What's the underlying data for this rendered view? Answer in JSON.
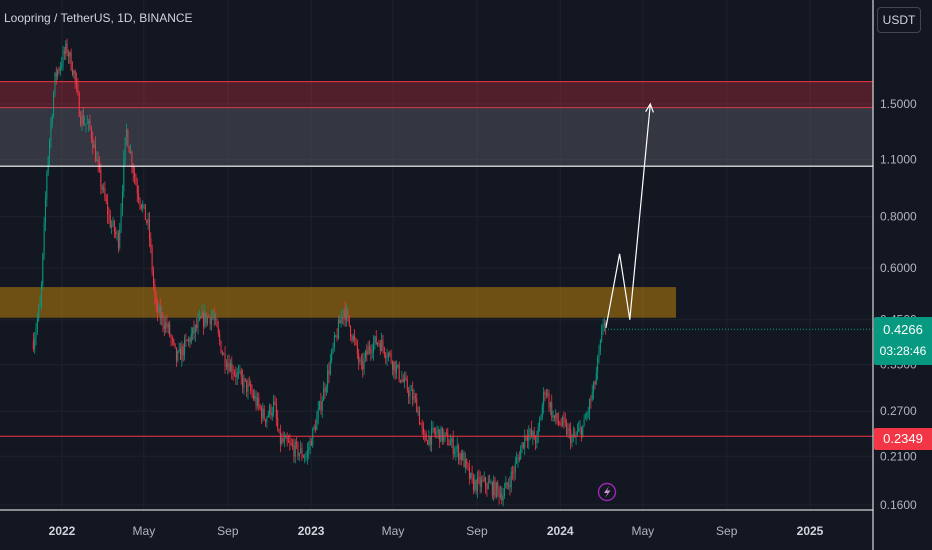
{
  "header": {
    "symbol": "Loopring / TetherUS",
    "interval": "1D",
    "exchange": "BINANCE"
  },
  "currency_button": "USDT",
  "current_price": {
    "value": "0.4266",
    "countdown": "03:28:46",
    "color": "#089981"
  },
  "support_price": {
    "value": "0.2349",
    "color": "#f23645"
  },
  "chart_data": {
    "type": "candlestick",
    "y_scale": "log",
    "y_ticks": [
      "1.5000",
      "1.1000",
      "0.8000",
      "0.6000",
      "0.4500",
      "0.3500",
      "0.2700",
      "0.2100",
      "0.1600"
    ],
    "x_ticks": [
      "2022",
      "May",
      "Sep",
      "2023",
      "May",
      "Sep",
      "2024",
      "May",
      "Sep",
      "2025"
    ],
    "up_color": "#089981",
    "down_color": "#f23645",
    "price_path": [
      [
        "2021-11-20",
        0.4
      ],
      [
        "2021-12-01",
        0.5
      ],
      [
        "2021-12-10",
        1.05
      ],
      [
        "2021-12-22",
        1.75
      ],
      [
        "2022-01-08",
        2.05
      ],
      [
        "2022-01-18",
        1.8
      ],
      [
        "2022-01-28",
        1.4
      ],
      [
        "2022-02-12",
        1.3
      ],
      [
        "2022-02-25",
        1.0
      ],
      [
        "2022-03-12",
        0.78
      ],
      [
        "2022-03-25",
        0.7
      ],
      [
        "2022-04-05",
        1.3
      ],
      [
        "2022-04-20",
        0.95
      ],
      [
        "2022-05-08",
        0.75
      ],
      [
        "2022-05-18",
        0.48
      ],
      [
        "2022-06-05",
        0.43
      ],
      [
        "2022-06-18",
        0.36
      ],
      [
        "2022-07-05",
        0.4
      ],
      [
        "2022-07-25",
        0.45
      ],
      [
        "2022-08-10",
        0.46
      ],
      [
        "2022-08-25",
        0.37
      ],
      [
        "2022-09-15",
        0.33
      ],
      [
        "2022-10-05",
        0.3
      ],
      [
        "2022-10-25",
        0.26
      ],
      [
        "2022-11-08",
        0.28
      ],
      [
        "2022-11-15",
        0.23
      ],
      [
        "2022-12-05",
        0.22
      ],
      [
        "2022-12-25",
        0.21
      ],
      [
        "2023-01-10",
        0.26
      ],
      [
        "2023-01-25",
        0.33
      ],
      [
        "2023-02-05",
        0.4
      ],
      [
        "2023-02-18",
        0.48
      ],
      [
        "2023-03-05",
        0.4
      ],
      [
        "2023-03-15",
        0.34
      ],
      [
        "2023-03-28",
        0.39
      ],
      [
        "2023-04-10",
        0.4
      ],
      [
        "2023-04-25",
        0.37
      ],
      [
        "2023-05-15",
        0.32
      ],
      [
        "2023-06-05",
        0.28
      ],
      [
        "2023-06-15",
        0.23
      ],
      [
        "2023-07-05",
        0.24
      ],
      [
        "2023-07-20",
        0.23
      ],
      [
        "2023-08-10",
        0.21
      ],
      [
        "2023-08-25",
        0.18
      ],
      [
        "2023-09-15",
        0.18
      ],
      [
        "2023-10-10",
        0.17
      ],
      [
        "2023-10-28",
        0.2
      ],
      [
        "2023-11-12",
        0.24
      ],
      [
        "2023-11-28",
        0.23
      ],
      [
        "2023-12-10",
        0.31
      ],
      [
        "2023-12-22",
        0.26
      ],
      [
        "2024-01-05",
        0.25
      ],
      [
        "2024-01-20",
        0.23
      ],
      [
        "2024-02-05",
        0.25
      ],
      [
        "2024-02-20",
        0.31
      ],
      [
        "2024-03-01",
        0.4
      ],
      [
        "2024-03-05",
        0.46
      ],
      [
        "2024-03-08",
        0.4266
      ]
    ],
    "zones": [
      {
        "type": "resistance",
        "from": 1.47,
        "to": 1.7,
        "color": "#f23645"
      },
      {
        "type": "range",
        "from": 1.06,
        "to": 1.47,
        "color": "#5d606b"
      },
      {
        "type": "resistance",
        "from": 0.455,
        "to": 0.54,
        "color": "#f7a600"
      }
    ],
    "lines": [
      {
        "type": "support",
        "value": 0.2349,
        "color": "#f23645"
      },
      {
        "type": "level",
        "value": 1.06,
        "color": "#ffffff"
      },
      {
        "type": "current",
        "value": 0.4266,
        "color": "#089981"
      }
    ],
    "projection": [
      [
        "2024-03-08",
        0.43
      ],
      [
        "2024-03-28",
        0.65
      ],
      [
        "2024-04-12",
        0.45
      ],
      [
        "2024-05-12",
        1.5
      ]
    ]
  }
}
